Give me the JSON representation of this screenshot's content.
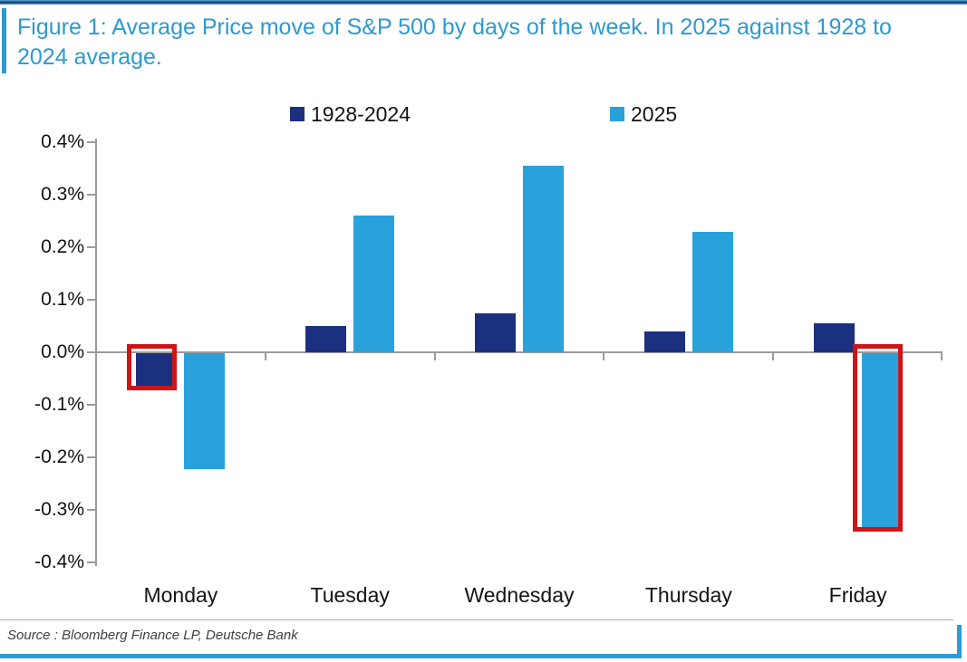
{
  "figure": {
    "title": "Figure 1: Average Price move of S&P 500 by days of the week. In 2025 against 1928 to 2024 average.",
    "source_note": "Source : Bloomberg Finance LP, Deutsche Bank",
    "title_color": "#2e99d0",
    "accent_line_color": "#2b9cd8",
    "axis_color": "#9b9b9b",
    "highlight_outline_color": "#ce1417"
  },
  "chart_data": {
    "type": "bar",
    "title": "Figure 1: Average Price move of S&P 500 by days of the week. In 2025 against 1928 to 2024 average.",
    "categories": [
      "Monday",
      "Tuesday",
      "Wednesday",
      "Thursday",
      "Friday"
    ],
    "series": [
      {
        "name": "1928-2024",
        "color": "#1b3180",
        "values": [
          -0.07,
          0.05,
          0.075,
          0.04,
          0.055
        ]
      },
      {
        "name": "2025",
        "color": "#29a2dc",
        "values": [
          -0.22,
          0.26,
          0.355,
          0.23,
          -0.34
        ]
      }
    ],
    "unit": "%",
    "xlabel": "",
    "ylabel": "",
    "ylim": [
      -0.4,
      0.4
    ],
    "y_tick_labels": [
      "0.4%",
      "0.3%",
      "0.2%",
      "0.1%",
      "0.0%",
      "-0.1%",
      "-0.2%",
      "-0.3%",
      "-0.4%"
    ],
    "grid": false,
    "legend_position": "top",
    "highlights": [
      {
        "category": "Monday",
        "series": "1928-2024",
        "note": "red outline"
      },
      {
        "category": "Friday",
        "series": "2025",
        "note": "red outline"
      }
    ]
  }
}
